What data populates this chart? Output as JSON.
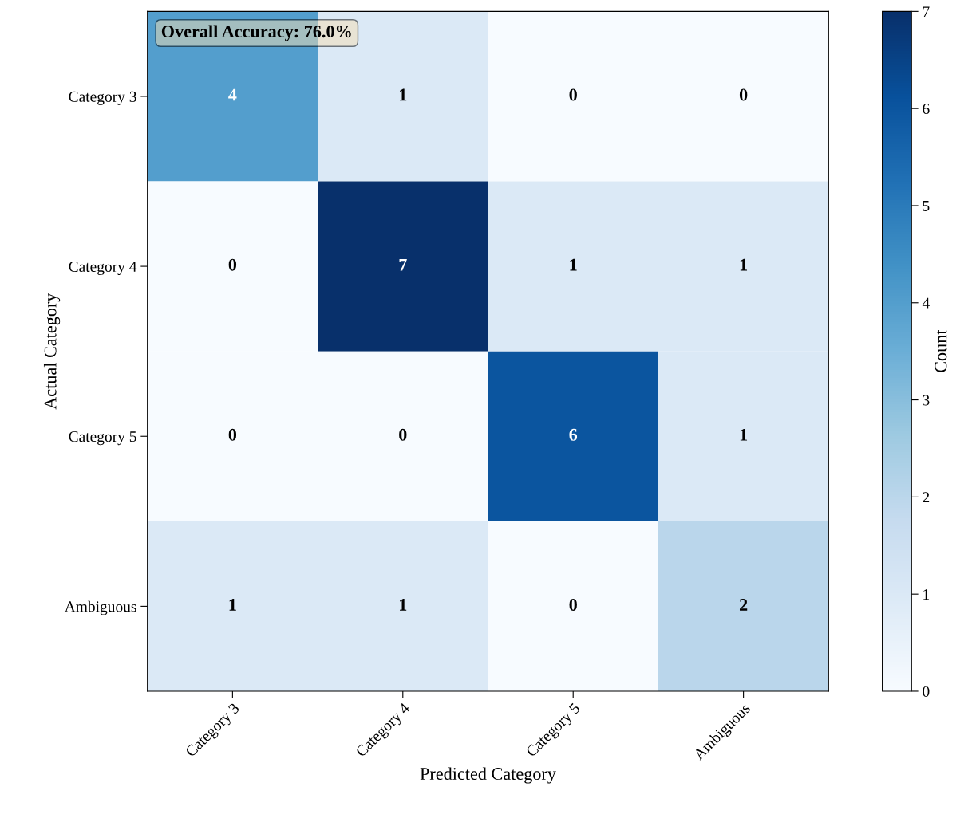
{
  "chart_data": {
    "type": "heatmap",
    "xlabel": "Predicted Category",
    "ylabel": "Actual Category",
    "clabel": "Count",
    "categories": [
      "Category 3",
      "Category 4",
      "Category 5",
      "Ambiguous"
    ],
    "y_categories": [
      "Category 3",
      "Category 4",
      "Category 5",
      "Ambiguous"
    ],
    "cells": [
      [
        4,
        1,
        0,
        0
      ],
      [
        0,
        7,
        1,
        1
      ],
      [
        0,
        0,
        6,
        1
      ],
      [
        1,
        1,
        0,
        2
      ]
    ],
    "clim": [
      0,
      7
    ],
    "cticks": [
      0,
      1,
      2,
      3,
      4,
      5,
      6,
      7
    ],
    "data_labels": true,
    "annotations": [
      "Overall Accuracy: 76.0%"
    ]
  }
}
